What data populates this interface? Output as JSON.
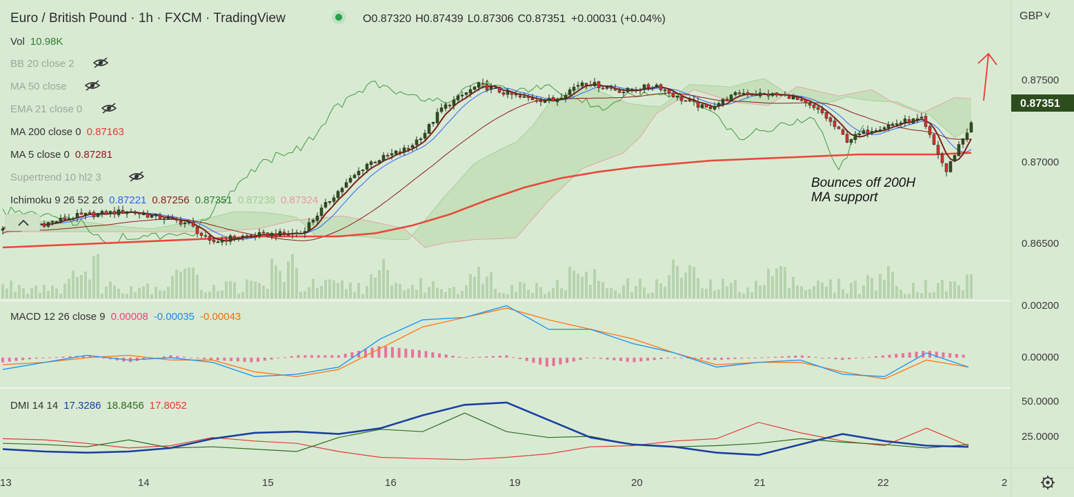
{
  "header": {
    "title": "Euro / British Pound · 1h · FXCM · TradingView",
    "ohlc": [
      {
        "label": "O",
        "value": "0.87320"
      },
      {
        "label": "H",
        "value": "0.87439"
      },
      {
        "label": "L",
        "value": "0.87306"
      },
      {
        "label": "C",
        "value": "0.87351"
      }
    ],
    "change": "+0.00031 (+0.04%)",
    "currency": "GBP"
  },
  "legend": {
    "vol": {
      "label": "Vol",
      "value": "10.98K"
    },
    "bb": "BB 20 close 2",
    "ma50": "MA 50 close",
    "ema21": "EMA 21 close 0",
    "ma200": {
      "label": "MA 200 close 0",
      "value": "0.87163"
    },
    "ma5": {
      "label": "MA 5 close 0",
      "value": "0.87281"
    },
    "supertrend": "Supertrend 10 hl2 3",
    "ichimoku": {
      "label": "Ichimoku 9 26 52 26",
      "values": [
        "0.87221",
        "0.87256",
        "0.87351",
        "0.87238",
        "0.87324"
      ]
    },
    "macd": {
      "label": "MACD 12 26 close 9",
      "values": [
        "0.00008",
        "-0.00035",
        "-0.00043"
      ]
    },
    "dmi": {
      "label": "DMI 14 14",
      "values": [
        "17.3286",
        "18.8456",
        "17.8052"
      ]
    }
  },
  "annotation": {
    "line1": "Bounces off 200H",
    "line2": "MA support"
  },
  "colors": {
    "background": "#d9ead3",
    "bull": "#2f4f1f",
    "bear": "#d32f2f",
    "ma200": "#e8483a",
    "ma5": "#7a1f1f",
    "tenkan": "#2962ff",
    "kijun": "#8b1a1a",
    "chikou": "#3c9a3c",
    "cloud": "#b7d7a8",
    "histogram": "#ec5c8f",
    "macd": "#2196f3",
    "signal": "#ff7a1a",
    "adx": "#1a3fa0"
  },
  "chart_data": [
    {
      "type": "candlestick",
      "title": "Euro / British Pound · 1h · FXCM",
      "x_ticks": [
        "13",
        "14",
        "15",
        "16",
        "19",
        "20",
        "21",
        "22",
        "2"
      ],
      "ylim": [
        0.8626,
        0.8792
      ],
      "y_ticks": [
        "0.87500",
        "0.87000",
        "0.86500"
      ],
      "last_price": "0.87351",
      "series": [
        {
          "name": "MA 200",
          "x": [
            0,
            9,
            18,
            27,
            36,
            45,
            54,
            63,
            72,
            81,
            90,
            99,
            108,
            117,
            126,
            135,
            144,
            153,
            162,
            171,
            180,
            189,
            198,
            207,
            216,
            225,
            234
          ],
          "values": [
            0.8657,
            0.8658,
            0.8659,
            0.866,
            0.8661,
            0.8662,
            0.8663,
            0.8664,
            0.8664,
            0.8664,
            0.8666,
            0.8671,
            0.8678,
            0.8687,
            0.8695,
            0.8701,
            0.8705,
            0.8708,
            0.871,
            0.8712,
            0.8713,
            0.8714,
            0.8715,
            0.8716,
            0.8716,
            0.8716,
            0.8717
          ]
        }
      ],
      "volume_label": "Vol 10.98K"
    },
    {
      "type": "line",
      "title": "MACD 12 26 close 9",
      "ylim": [
        -0.0012,
        0.0023
      ],
      "y_ticks": [
        "0.00200",
        "0.00000"
      ],
      "x": [
        0,
        10,
        20,
        30,
        40,
        50,
        60,
        70,
        80,
        90,
        100,
        110,
        120,
        130,
        140,
        150,
        160,
        170,
        180,
        190,
        200,
        210,
        220,
        230
      ],
      "series": [
        {
          "name": "MACD",
          "values": [
            -0.0005,
            -0.0002,
            0.0001,
            -0.0001,
            0.0,
            -0.0002,
            -0.0008,
            -0.0007,
            -0.0004,
            0.0008,
            0.0016,
            0.0017,
            0.0022,
            0.0012,
            0.0012,
            0.0006,
            0.0002,
            -0.0004,
            -0.0002,
            -0.0001,
            -0.0007,
            -0.0008,
            0.0002,
            -0.0004
          ]
        },
        {
          "name": "Signal",
          "values": [
            -0.0003,
            -0.0002,
            0.0,
            0.0001,
            -0.0001,
            -0.0001,
            -0.0006,
            -0.0008,
            -0.0005,
            0.0004,
            0.0013,
            0.0017,
            0.0021,
            0.0016,
            0.0012,
            0.0008,
            0.0002,
            -0.0003,
            -0.0002,
            -0.0002,
            -0.0006,
            -0.0009,
            -0.0001,
            -0.0004
          ]
        },
        {
          "name": "Histogram",
          "values": [
            -0.0002,
            0.0,
            0.0001,
            -0.0002,
            0.0001,
            -0.0001,
            -0.0002,
            0.0001,
            0.0001,
            0.0005,
            0.0003,
            0.0,
            0.0001,
            -0.0004,
            0.0,
            -0.0002,
            0.0,
            -0.0001,
            0.0,
            0.0001,
            -0.0001,
            0.0001,
            0.0003,
            0.0001
          ]
        }
      ]
    },
    {
      "type": "line",
      "title": "DMI 14 14",
      "ylim": [
        0,
        65
      ],
      "y_ticks": [
        "50.0000",
        "25.0000"
      ],
      "x": [
        0,
        10,
        20,
        30,
        40,
        50,
        60,
        70,
        80,
        90,
        100,
        110,
        120,
        130,
        140,
        150,
        160,
        170,
        180,
        190,
        200,
        210,
        220,
        230
      ],
      "series": [
        {
          "name": "ADX",
          "values": [
            15,
            13,
            12,
            13,
            16,
            24,
            29,
            30,
            28,
            33,
            44,
            53,
            55,
            40,
            25,
            19,
            17,
            12,
            10,
            19,
            28,
            22,
            18,
            17
          ]
        },
        {
          "name": "+DI",
          "values": [
            20,
            19,
            17,
            23,
            16,
            17,
            15,
            13,
            25,
            32,
            30,
            46,
            30,
            25,
            26,
            19,
            17,
            18,
            20,
            24,
            21,
            19,
            16,
            19
          ]
        },
        {
          "name": "-DI",
          "values": [
            24,
            23,
            20,
            16,
            18,
            25,
            22,
            20,
            13,
            8,
            7,
            6,
            8,
            11,
            17,
            18,
            22,
            24,
            38,
            29,
            22,
            18,
            33,
            18
          ]
        }
      ]
    }
  ]
}
